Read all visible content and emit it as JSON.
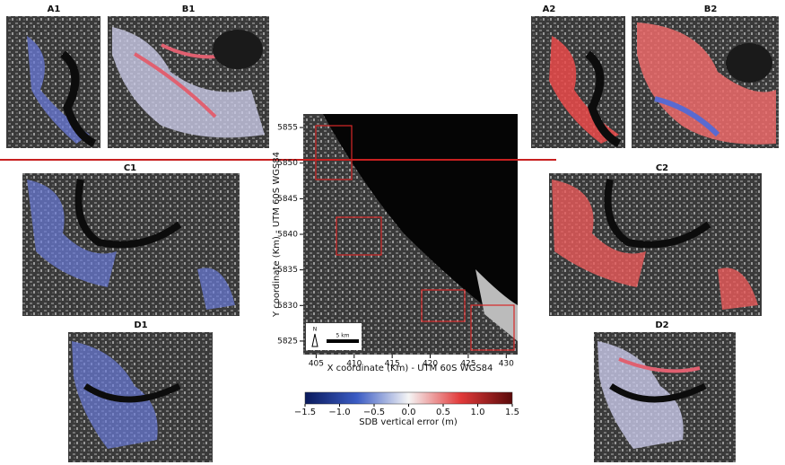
{
  "panels": [
    "A1",
    "B1",
    "A2",
    "B2",
    "C1",
    "C2",
    "D1",
    "D2"
  ],
  "map": {
    "xlabel": "X coordinate (Km) - UTM 60S WGS84",
    "ylabel": "Y coordinate (Km) - UTM 60S WGS84",
    "xlim": [
      403.3,
      431.5
    ],
    "xticks": [
      405,
      410,
      415,
      420,
      425,
      430
    ],
    "ylim": [
      5823.1,
      5856.9
    ],
    "yticks": [
      5825,
      5830,
      5835,
      5840,
      5845,
      5850,
      5855
    ],
    "scale_label": "5 km",
    "north_label": "N"
  },
  "colorbar": {
    "label": "SDB vertical error (m)",
    "lim": [
      -1.5,
      1.5
    ],
    "ticks": [
      {
        "value": -1.5,
        "label": "−1.5"
      },
      {
        "value": -1.0,
        "label": "−1.0"
      },
      {
        "value": -0.5,
        "label": "−0.5"
      },
      {
        "value": 0.0,
        "label": "0.0"
      },
      0.5,
      {
        "value": 1.0,
        "label": "1.0"
      },
      1.5
    ]
  }
}
